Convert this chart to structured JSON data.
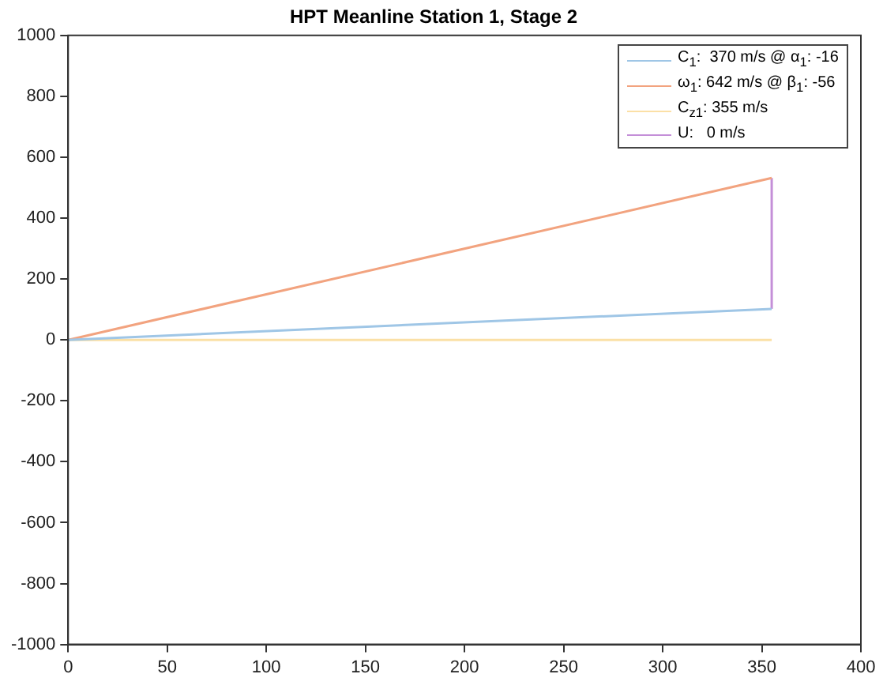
{
  "chart_data": {
    "type": "line",
    "title": "HPT Meanline Station 1, Stage 2",
    "xlim": [
      0,
      400
    ],
    "xticks": [
      0,
      50,
      100,
      150,
      200,
      250,
      300,
      350,
      400
    ],
    "ylim": [
      -1000,
      1000
    ],
    "yticks": [
      -1000,
      -800,
      -600,
      -400,
      -200,
      0,
      200,
      400,
      600,
      800,
      1000
    ],
    "x": [
      0,
      355
    ],
    "grid": false,
    "legend": "top right",
    "marker": "none",
    "line_style": "solid",
    "series": [
      {
        "name": "C$_{1}$:  370 m/s @ α$_{1}$: -16",
        "color": "#9fc6e6",
        "values": [
          0,
          102
        ]
      },
      {
        "name": "ω$_{1}$: 642 m/s @ β$_{1}$: -56",
        "color": "#f2a37f",
        "values": [
          0,
          532
        ]
      },
      {
        "name": "C$_{z1}$: 355 m/s",
        "color": "#fbe0a6",
        "values": [
          0,
          0
        ]
      },
      {
        "name": "U:   0 m/s",
        "color": "#c48fd8",
        "x": [
          355,
          355
        ],
        "values": [
          102,
          532
        ]
      }
    ]
  }
}
